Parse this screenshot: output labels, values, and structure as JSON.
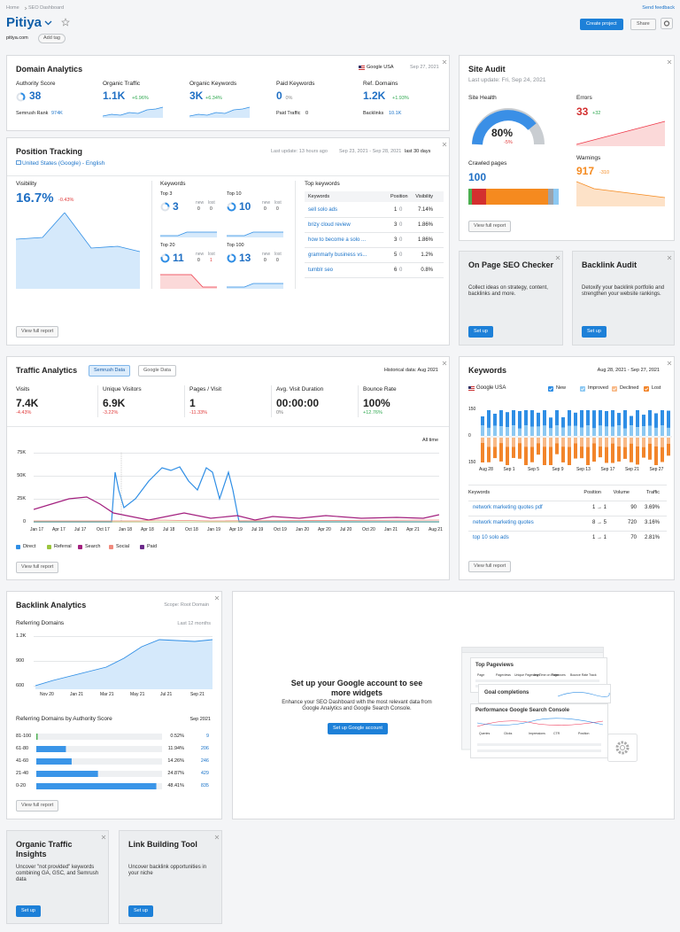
{
  "breadcrumb": {
    "home": "Home",
    "current": "SEO Dashboard"
  },
  "feedback": "Send feedback",
  "project": {
    "name": "Pitiya",
    "domain": "pitiya.com",
    "add_tag": "Add tag"
  },
  "actions": {
    "create": "Create project",
    "share": "Share"
  },
  "domain_analytics": {
    "title": "Domain Analytics",
    "database": "Google USA",
    "date": "Sep 27, 2021",
    "metrics": [
      {
        "label": "Authority Score",
        "value": "38",
        "sub_label": "Semrush Rank",
        "sub_value": "974K"
      },
      {
        "label": "Organic Traffic",
        "value": "1.1K",
        "change": "+6.96%"
      },
      {
        "label": "Organic Keywords",
        "value": "3K",
        "change": "+6.34%"
      },
      {
        "label": "Paid Keywords",
        "value": "0",
        "change": "0%",
        "sub_label": "Paid Traffic",
        "sub_value": "0"
      },
      {
        "label": "Ref. Domains",
        "value": "1.2K",
        "change": "+1.93%",
        "sub_label": "Backlinks",
        "sub_value": "10.1K"
      }
    ]
  },
  "site_audit": {
    "title": "Site Audit",
    "last_update": "Last update: Fri, Sep 24, 2021",
    "health_label": "Site Health",
    "health": "80%",
    "health_change": "-5%",
    "errors_label": "Errors",
    "errors": "33",
    "errors_change": "+32",
    "crawled_label": "Crawled pages",
    "crawled": "100",
    "warnings_label": "Warnings",
    "warnings": "917",
    "warnings_change": "-310",
    "view": "View full report"
  },
  "position_tracking": {
    "title": "Position Tracking",
    "location": "United States (Google) - English",
    "last_update": "Last update: 13 hours ago",
    "range": "Sep 23, 2021 - Sep 28, 2021",
    "period": "last 30 days",
    "visibility_label": "Visibility",
    "visibility": "16.7%",
    "visibility_change": "-0.43%",
    "keywords_label": "Keywords",
    "new_label": "new",
    "lost_label": "lost",
    "buckets": [
      {
        "label": "Top 3",
        "value": "3",
        "new": "0",
        "lost": "0"
      },
      {
        "label": "Top 10",
        "value": "10",
        "new": "0",
        "lost": "0"
      },
      {
        "label": "Top 20",
        "value": "11",
        "new": "0",
        "lost": "1"
      },
      {
        "label": "Top 100",
        "value": "13",
        "new": "0",
        "lost": "0"
      }
    ],
    "top_keywords": {
      "title": "Top keywords",
      "columns": [
        "Keywords",
        "Position",
        "Visibility"
      ],
      "rows": [
        [
          "sell solo ads",
          "1",
          "0",
          "7.14%"
        ],
        [
          "brizy cloud review",
          "3",
          "0",
          "1.86%"
        ],
        [
          "how to become a solo ...",
          "3",
          "0",
          "1.86%"
        ],
        [
          "grammarly business vs...",
          "5",
          "0",
          "1.2%"
        ],
        [
          "tumblr seo",
          "6",
          "0",
          "0.8%"
        ]
      ]
    },
    "view": "View full report"
  },
  "on_page": {
    "title": "On Page SEO Checker",
    "text": "Collect ideas on strategy, content, backlinks and more.",
    "button": "Set up"
  },
  "backlink_audit": {
    "title": "Backlink Audit",
    "text": "Detoxify your backlink portfolio and strengthen your website rankings.",
    "button": "Set up"
  },
  "traffic_analytics": {
    "title": "Traffic Analytics",
    "tabs": [
      "Semrush Data",
      "Google Data"
    ],
    "historical": "Historical data: Aug 2021",
    "metrics": [
      {
        "label": "Visits",
        "value": "7.4K",
        "change": "-4.43%"
      },
      {
        "label": "Unique Visitors",
        "value": "6.9K",
        "change": "-3.22%"
      },
      {
        "label": "Pages / Visit",
        "value": "1",
        "change": "-11.33%"
      },
      {
        "label": "Avg. Visit Duration",
        "value": "00:00:00",
        "change": "0%"
      },
      {
        "label": "Bounce Rate",
        "value": "100%",
        "change": "+12.76%"
      }
    ],
    "period": "All time",
    "yticks": [
      "75K",
      "50K",
      "25K",
      "0"
    ],
    "xticks": [
      "Jan 17",
      "Apr 17",
      "Jul 17",
      "Oct 17",
      "Jan 18",
      "Apr 18",
      "Jul 18",
      "Oct 18",
      "Jan 19",
      "Apr 19",
      "Jul 19",
      "Oct 19",
      "Jan 20",
      "Apr 20",
      "Jul 20",
      "Oct 20",
      "Jan 21",
      "Apr 21",
      "Aug 21"
    ],
    "legend": [
      {
        "name": "Direct",
        "color": "#2f8ee5"
      },
      {
        "name": "Referral",
        "color": "#9bc53d"
      },
      {
        "name": "Search",
        "color": "#a3207f"
      },
      {
        "name": "Social",
        "color": "#f08a7d"
      },
      {
        "name": "Paid",
        "color": "#6b2a8a"
      }
    ],
    "view": "View full report"
  },
  "keywords": {
    "title": "Keywords",
    "range": "Aug 28, 2021 - Sep 27, 2021",
    "database": "Google USA",
    "legend": [
      {
        "name": "New",
        "color": "#2f8ee5"
      },
      {
        "name": "Improved",
        "color": "#8cc8f2"
      },
      {
        "name": "Declined",
        "color": "#f8b987"
      },
      {
        "name": "Lost",
        "color": "#f2852b"
      }
    ],
    "yticks": [
      "150",
      "0",
      "150"
    ],
    "xticks": [
      "Aug 28",
      "Sep 1",
      "Sep 5",
      "Sep 9",
      "Sep 13",
      "Sep 17",
      "Sep 21",
      "Sep 27"
    ],
    "columns": [
      "Keywords",
      "Position",
      "Volume",
      "Traffic"
    ],
    "rows": [
      [
        "network marketing quotes pdf",
        "1 → 1",
        "90",
        "3.69%"
      ],
      [
        "network marketing quotes",
        "8 → 5",
        "720",
        "3.16%"
      ],
      [
        "top 10 solo ads",
        "1 → 1",
        "70",
        "2.81%"
      ]
    ],
    "view": "View full report"
  },
  "backlink_analytics": {
    "title": "Backlink Analytics",
    "scope": "Scope: Root Domain",
    "ref_label": "Referring Domains",
    "ref_period": "Last 12 months",
    "yticks": [
      "1.2K",
      "900",
      "600"
    ],
    "xticks": [
      "Nov 20",
      "Jan 21",
      "Mar 21",
      "May 21",
      "Jul 21",
      "Sep 21"
    ],
    "by_score_label": "Referring Domains by Authority Score",
    "by_score_date": "Sep 2021",
    "rows": [
      [
        "81-100",
        "0.52%",
        "9"
      ],
      [
        "61-80",
        "11.94%",
        "206"
      ],
      [
        "41-60",
        "14.26%",
        "246"
      ],
      [
        "21-40",
        "24.87%",
        "429"
      ],
      [
        "0-20",
        "48.41%",
        "835"
      ]
    ],
    "view": "View full report"
  },
  "google": {
    "title": "Set up your Google account to see more widgets",
    "text": "Enhance your SEO Dashboard with the most relevant data from Google Analytics and Google Search Console.",
    "button": "Set up Google account",
    "preview": {
      "pageviews": "Top Pageviews",
      "pageviews_cols": [
        "Page",
        "Pageviews",
        "Unique Pageviews",
        "Avg Time on Page",
        "Entrances",
        "Bounce Rate",
        "Track"
      ],
      "goals": "Goal completions",
      "gsc": "Performance Google Search Console",
      "gsc_cols": [
        "Queries",
        "Clicks",
        "Impressions",
        "CTR",
        "Position"
      ]
    }
  },
  "organic_insights": {
    "title": "Organic Traffic Insights",
    "text": "Uncover \"not provided\" keywords combining GA, GSC, and Semrush data",
    "button": "Set up"
  },
  "link_building": {
    "title": "Link Building Tool",
    "text": "Uncover backlink opportunities in your niche",
    "button": "Set up"
  }
}
